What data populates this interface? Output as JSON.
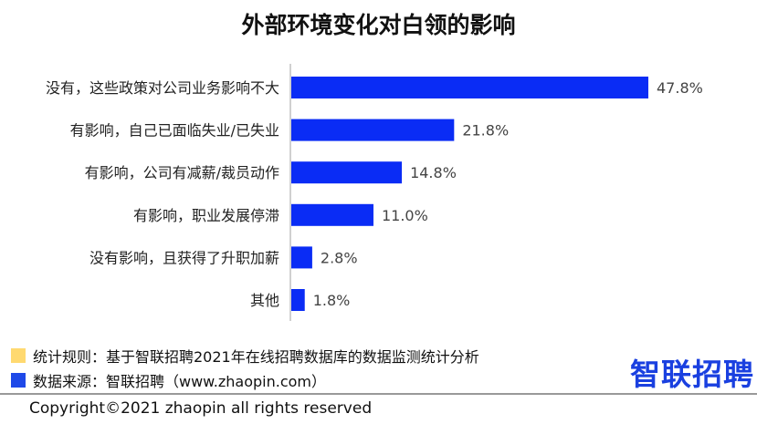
{
  "chart_data": {
    "type": "bar",
    "orientation": "horizontal",
    "title": "外部环境变化对白领的影响",
    "categories": [
      "没有，这些政策对公司业务影响不大",
      "有影响，自己已面临失业/已失业",
      "有影响，公司有减薪/裁员动作",
      "有影响，职业发展停滞",
      "没有影响，且获得了升职加薪",
      "其他"
    ],
    "values": [
      47.8,
      21.8,
      14.8,
      11.0,
      2.8,
      1.8
    ],
    "labels": [
      "47.8%",
      "21.8%",
      "14.8%",
      "11.0%",
      "2.8%",
      "1.8%"
    ],
    "xlim": [
      0,
      50
    ],
    "grid": false,
    "bar_color": "#0a2cf5"
  },
  "legend": {
    "rule": "统计规则：基于智联招聘2021年在线招聘数据库的数据监测统计分析",
    "source": "数据来源：智联招聘（www.zhaopin.com）",
    "rule_color": "#ffd970",
    "source_color": "#1f49e8"
  },
  "logo": "智联招聘",
  "copyright": "Copyright©2021 zhaopin all rights reserved"
}
